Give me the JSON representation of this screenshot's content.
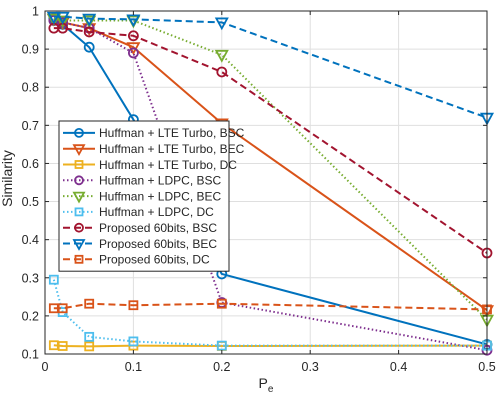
{
  "chart_data": {
    "type": "line",
    "xlabel": "P",
    "xlabel_sub": "e",
    "ylabel": "Similarity",
    "xlim": [
      0,
      0.5
    ],
    "ylim": [
      0.1,
      1
    ],
    "xticks": [
      0,
      0.1,
      0.2,
      0.3,
      0.4,
      0.5
    ],
    "xtick_labels": [
      "0",
      "0.1",
      "0.2",
      "0.3",
      "0.4",
      "0.5"
    ],
    "yticks": [
      0.1,
      0.2,
      0.3,
      0.4,
      0.5,
      0.6,
      0.7,
      0.8,
      0.9,
      1
    ],
    "ytick_labels": [
      "0.1",
      "0.2",
      "0.3",
      "0.4",
      "0.5",
      "0.6",
      "0.7",
      "0.8",
      "0.9",
      "1"
    ],
    "grid": true,
    "legend_position": "center-left",
    "series": [
      {
        "name": "Huffman + LTE Turbo, BSC",
        "color": "#0072BD",
        "dash": "solid",
        "marker": "circle",
        "x": [
          0.01,
          0.02,
          0.05,
          0.1,
          0.2,
          0.5
        ],
        "y": [
          0.98,
          0.965,
          0.905,
          0.715,
          0.31,
          0.125
        ]
      },
      {
        "name": "Huffman + LTE Turbo, BEC",
        "color": "#D95319",
        "dash": "solid",
        "marker": "triangle-down",
        "x": [
          0.01,
          0.02,
          0.05,
          0.1,
          0.2,
          0.5
        ],
        "y": [
          0.98,
          0.97,
          0.955,
          0.905,
          0.705,
          0.215
        ]
      },
      {
        "name": "Huffman + LTE Turbo, DC",
        "color": "#EDB120",
        "dash": "solid",
        "marker": "square",
        "x": [
          0.01,
          0.02,
          0.05,
          0.1,
          0.2,
          0.5
        ],
        "y": [
          0.123,
          0.121,
          0.12,
          0.122,
          0.121,
          0.122
        ]
      },
      {
        "name": "Huffman + LDPC, BSC",
        "color": "#7E2F8E",
        "dash": "dotted",
        "marker": "circle",
        "x": [
          0.01,
          0.02,
          0.05,
          0.1,
          0.2,
          0.5
        ],
        "y": [
          0.975,
          0.97,
          0.955,
          0.89,
          0.235,
          0.11
        ]
      },
      {
        "name": "Huffman + LDPC, BEC",
        "color": "#77AC30",
        "dash": "dotted",
        "marker": "triangle-down",
        "x": [
          0.01,
          0.02,
          0.05,
          0.1,
          0.2,
          0.5
        ],
        "y": [
          0.98,
          0.975,
          0.975,
          0.975,
          0.885,
          0.19
        ]
      },
      {
        "name": "Huffman + LDPC, DC",
        "color": "#4DBEEE",
        "dash": "dotted",
        "marker": "square",
        "x": [
          0.01,
          0.02,
          0.05,
          0.1,
          0.2,
          0.5
        ],
        "y": [
          0.295,
          0.21,
          0.145,
          0.133,
          0.122,
          0.122
        ]
      },
      {
        "name": "Proposed 60bits, BSC",
        "color": "#A2142F",
        "dash": "dashed",
        "marker": "circle",
        "x": [
          0.01,
          0.02,
          0.05,
          0.1,
          0.2,
          0.5
        ],
        "y": [
          0.955,
          0.955,
          0.945,
          0.935,
          0.84,
          0.365
        ]
      },
      {
        "name": "Proposed 60bits, BEC",
        "color": "#0072BD",
        "dash": "dashed",
        "marker": "triangle-down",
        "x": [
          0.01,
          0.02,
          0.05,
          0.1,
          0.2,
          0.5
        ],
        "y": [
          0.985,
          0.985,
          0.98,
          0.978,
          0.97,
          0.72
        ]
      },
      {
        "name": "Proposed 60bits, DC",
        "color": "#D95319",
        "dash": "dashed",
        "marker": "square",
        "x": [
          0.01,
          0.02,
          0.05,
          0.1,
          0.2,
          0.5
        ],
        "y": [
          0.22,
          0.22,
          0.232,
          0.228,
          0.232,
          0.217
        ]
      }
    ]
  }
}
